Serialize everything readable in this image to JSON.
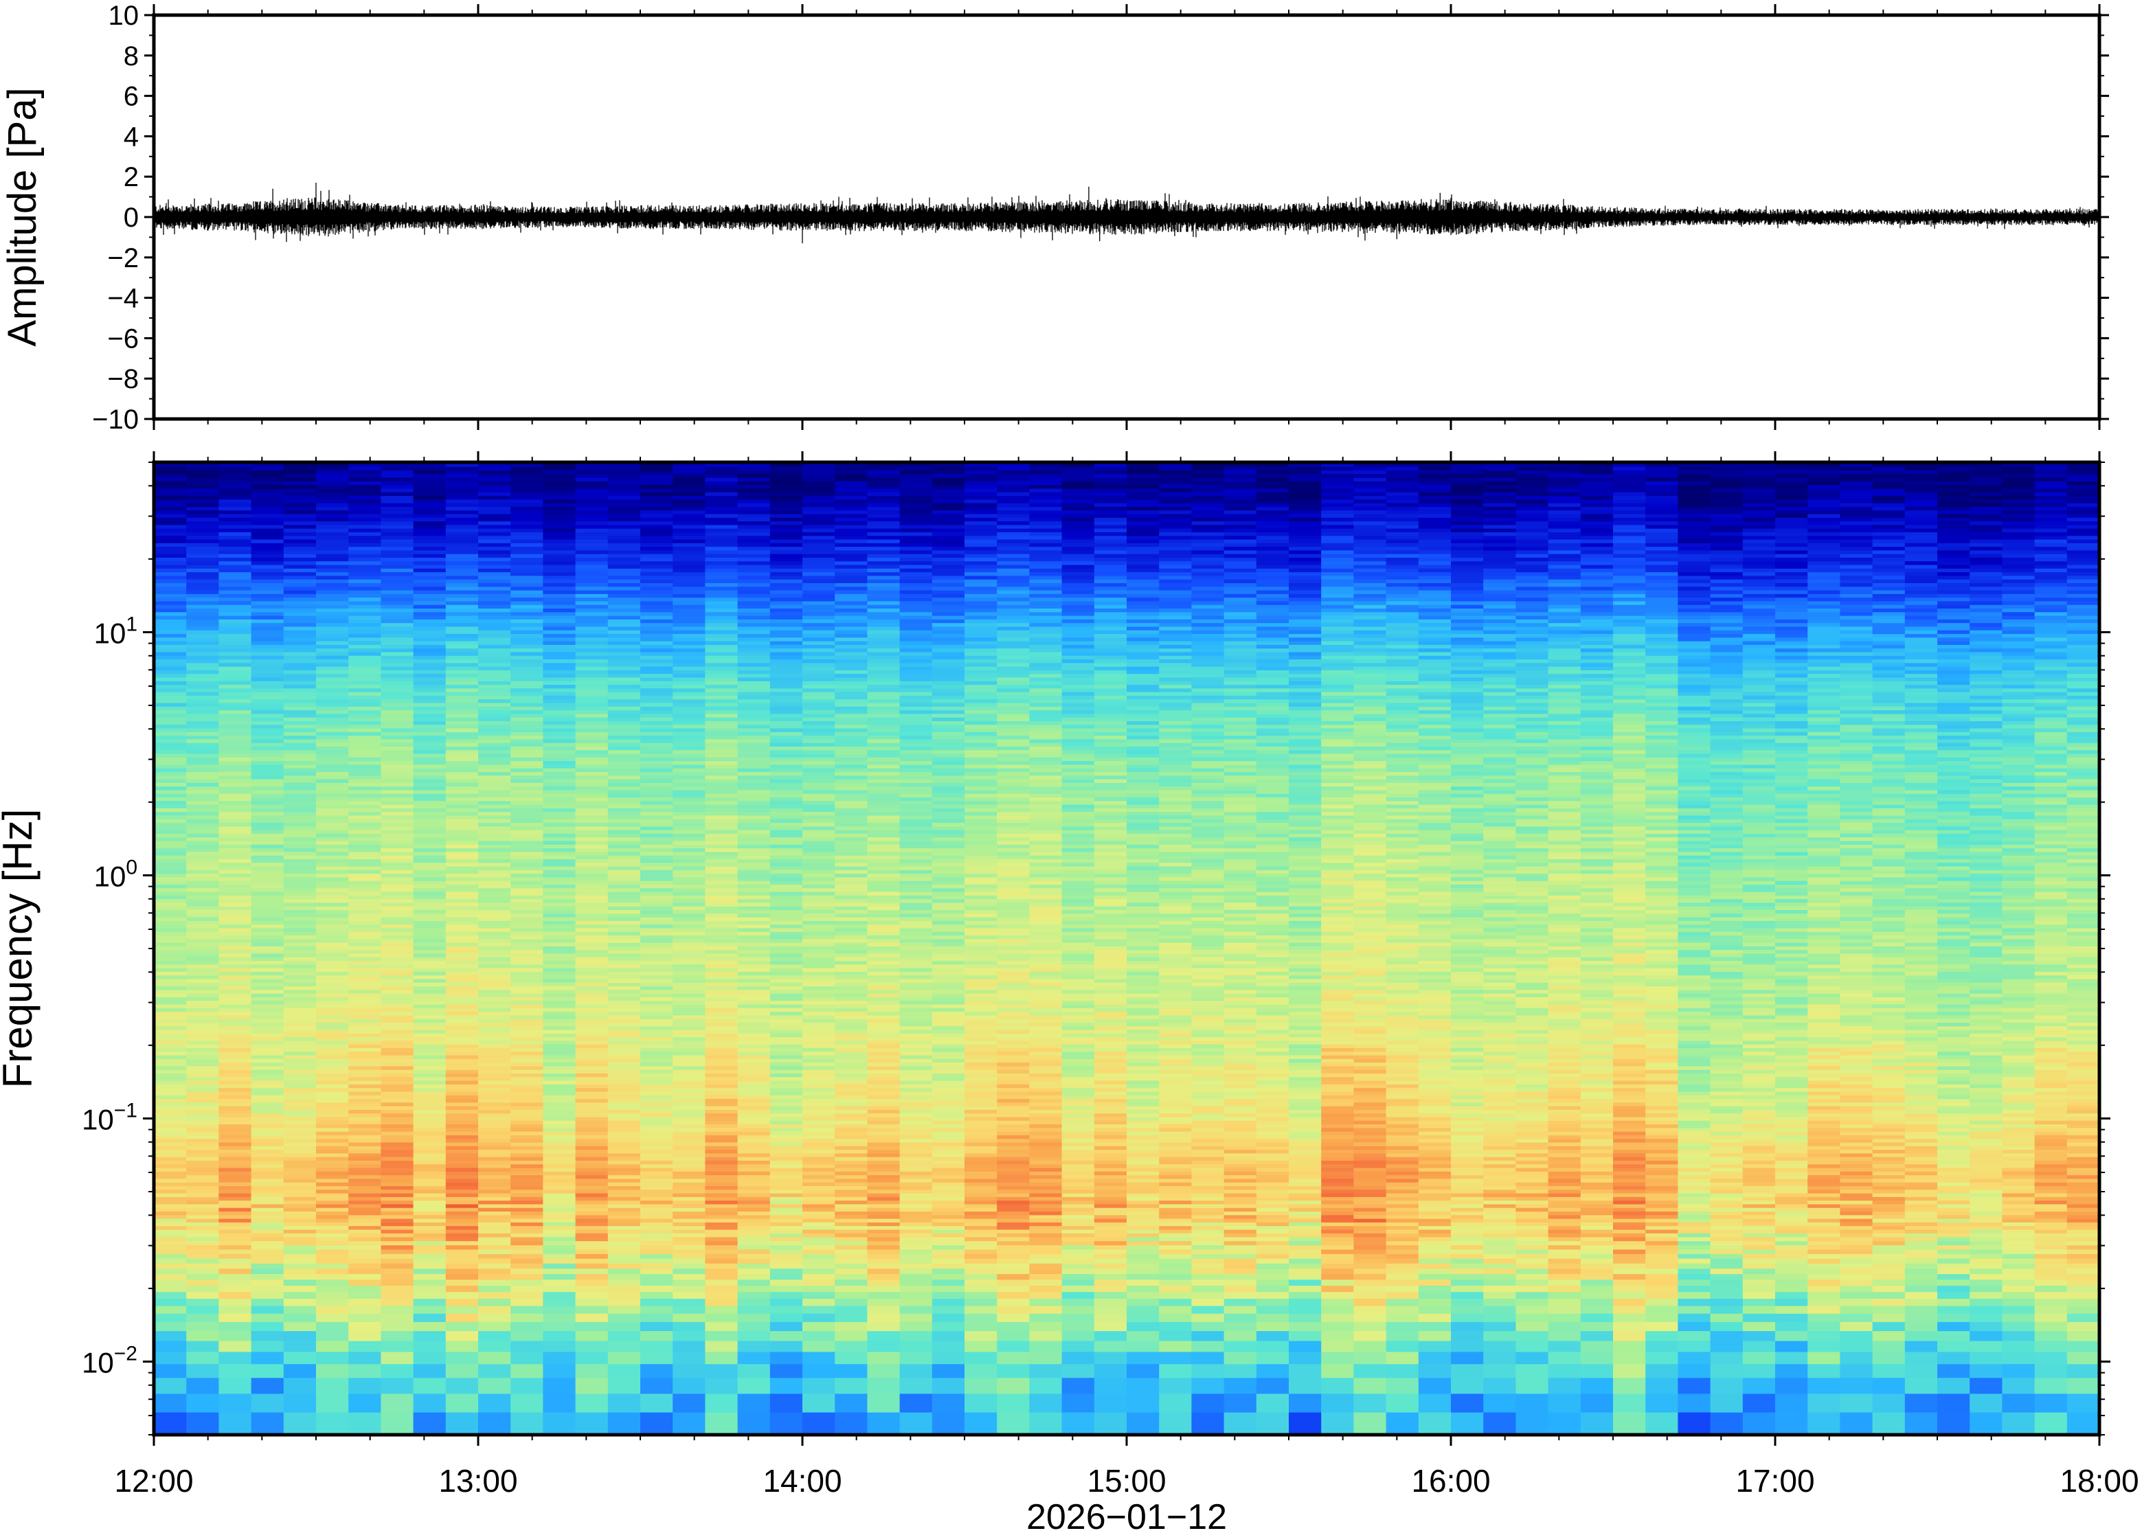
{
  "chart_data": [
    {
      "type": "line",
      "panel": "waveform",
      "ylabel": "Amplitude [Pa]",
      "ylim": [
        -10,
        10
      ],
      "y_ticks": [
        -10,
        -8,
        -6,
        -4,
        -2,
        0,
        2,
        4,
        6,
        8,
        10
      ],
      "y_tick_labels": [
        "−10",
        "−8",
        "−6",
        "−4",
        "−2",
        "0",
        "2",
        "4",
        "6",
        "8",
        "10"
      ],
      "xlim": [
        "2026-01-12T12:00",
        "2026-01-12T18:00"
      ],
      "series": [
        {
          "color": "#000000",
          "x_hours": [
            12.0,
            12.25,
            12.5,
            12.75,
            13.0,
            13.25,
            13.5,
            13.75,
            14.0,
            14.25,
            14.5,
            14.75,
            15.0,
            15.25,
            15.5,
            15.75,
            16.0,
            16.25,
            16.5,
            16.75,
            17.0,
            17.25,
            17.5,
            17.75,
            18.0
          ],
          "envelope_pa": [
            0.6,
            0.7,
            1.0,
            0.6,
            0.6,
            0.5,
            0.6,
            0.6,
            0.7,
            0.7,
            0.7,
            0.8,
            0.9,
            0.7,
            0.7,
            0.8,
            0.9,
            0.7,
            0.5,
            0.4,
            0.4,
            0.4,
            0.4,
            0.4,
            0.4
          ],
          "peaks": [
            {
              "x": "12:30",
              "y": 1.7
            },
            {
              "x": "12:22",
              "y": 1.4
            },
            {
              "x": "14:00",
              "y": -1.3
            },
            {
              "x": "14:53",
              "y": 1.5
            },
            {
              "x": "14:55",
              "y": -1.2
            },
            {
              "x": "15:58",
              "y": 1.2
            },
            {
              "x": "15:50",
              "y": -1.1
            }
          ]
        }
      ]
    },
    {
      "type": "heatmap",
      "panel": "spectrogram",
      "ylabel": "Frequency [Hz]",
      "yscale": "log",
      "ylim": [
        0.005,
        50
      ],
      "y_tick_labels": [
        {
          "base": "10",
          "exp": "−2",
          "value": 0.01
        },
        {
          "base": "10",
          "exp": "−1",
          "value": 0.1
        },
        {
          "base": "10",
          "exp": "0",
          "value": 1
        },
        {
          "base": "10",
          "exp": "1",
          "value": 10
        }
      ],
      "xlim": [
        "2026-01-12T12:00",
        "2026-01-12T18:00"
      ],
      "colormap": "jet",
      "time_bins_per_hour": 10,
      "frequency_profile_db": [
        {
          "f": 0.005,
          "level": 0.35
        },
        {
          "f": 0.01,
          "level": 0.45
        },
        {
          "f": 0.02,
          "level": 0.62
        },
        {
          "f": 0.04,
          "level": 0.76
        },
        {
          "f": 0.06,
          "level": 0.78
        },
        {
          "f": 0.1,
          "level": 0.7
        },
        {
          "f": 0.3,
          "level": 0.62
        },
        {
          "f": 1,
          "level": 0.58
        },
        {
          "f": 3,
          "level": 0.53
        },
        {
          "f": 6,
          "level": 0.45
        },
        {
          "f": 10,
          "level": 0.35
        },
        {
          "f": 20,
          "level": 0.18
        },
        {
          "f": 40,
          "level": 0.05
        }
      ],
      "quieter_after": "16:30"
    }
  ],
  "x_axis": {
    "tick_labels": [
      "12:00",
      "13:00",
      "14:00",
      "15:00",
      "16:00",
      "17:00",
      "18:00"
    ],
    "date_label": "2026−01−12"
  },
  "colors": {
    "frame": "#000000",
    "background": "#ffffff",
    "trace": "#000000"
  }
}
